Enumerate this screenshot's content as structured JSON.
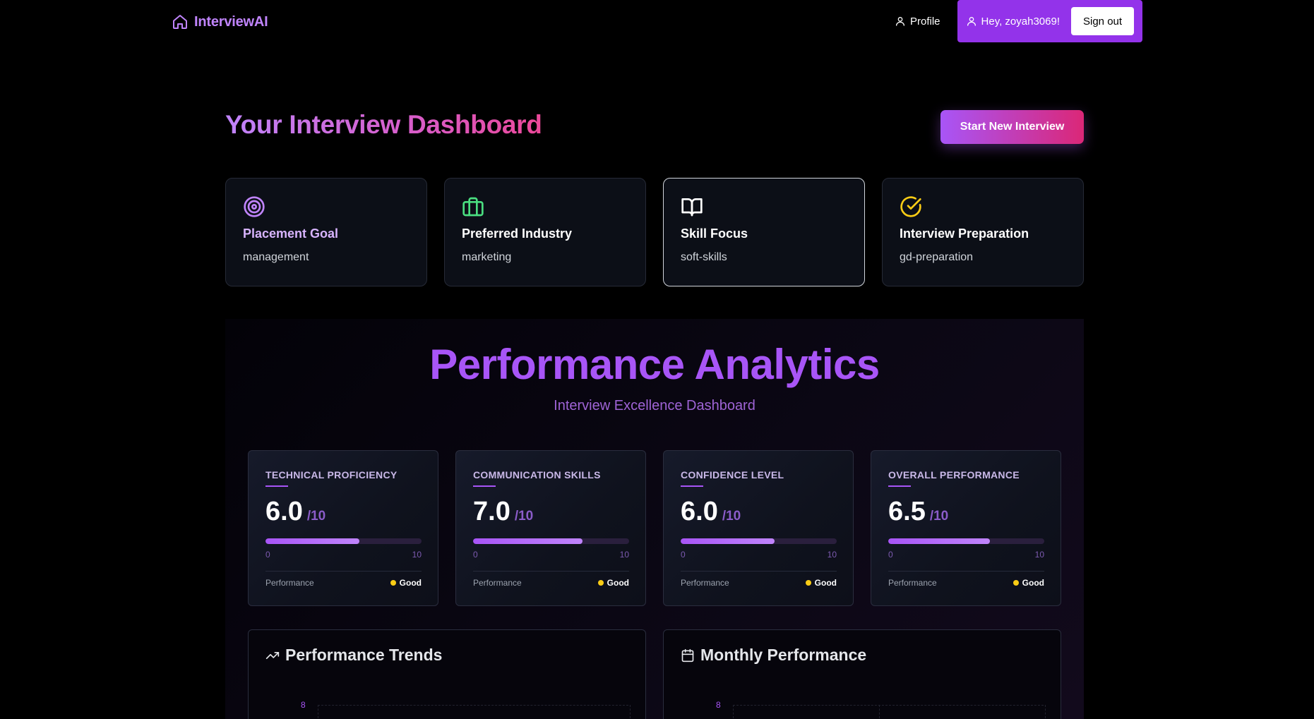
{
  "nav": {
    "brand": "InterviewAI",
    "profile": "Profile",
    "greeting": "Hey, zoyah3069!",
    "sign_out": "Sign out"
  },
  "header": {
    "title": "Your Interview Dashboard",
    "start_button": "Start New Interview"
  },
  "preferences": [
    {
      "label": "Placement Goal",
      "value": "management",
      "icon": "target-icon",
      "color": "#c084fc"
    },
    {
      "label": "Preferred Industry",
      "value": "marketing",
      "icon": "briefcase-icon",
      "color": "#4ade80"
    },
    {
      "label": "Skill Focus",
      "value": "soft-skills",
      "icon": "book-open-icon",
      "color": "#ffffff"
    },
    {
      "label": "Interview Preparation",
      "value": "gd-preparation",
      "icon": "check-circle-icon",
      "color": "#facc15"
    }
  ],
  "analytics": {
    "title": "Performance Analytics",
    "subtitle": "Interview Excellence Dashboard",
    "metrics": [
      {
        "label": "TECHNICAL PROFICIENCY",
        "score": "6.0",
        "max": "/10",
        "progress": 0.6,
        "scale_min": "0",
        "scale_max": "10",
        "footer_label": "Performance",
        "rating": "Good"
      },
      {
        "label": "COMMUNICATION SKILLS",
        "score": "7.0",
        "max": "/10",
        "progress": 0.7,
        "scale_min": "0",
        "scale_max": "10",
        "footer_label": "Performance",
        "rating": "Good"
      },
      {
        "label": "CONFIDENCE LEVEL",
        "score": "6.0",
        "max": "/10",
        "progress": 0.6,
        "scale_min": "0",
        "scale_max": "10",
        "footer_label": "Performance",
        "rating": "Good"
      },
      {
        "label": "OVERALL PERFORMANCE",
        "score": "6.5",
        "max": "/10",
        "progress": 0.65,
        "scale_min": "0",
        "scale_max": "10",
        "footer_label": "Performance",
        "rating": "Good"
      }
    ],
    "charts": [
      {
        "title": "Performance Trends",
        "icon": "trending-up-icon",
        "top_tick": "8"
      },
      {
        "title": "Monthly Performance",
        "icon": "calendar-icon",
        "top_tick": "8"
      }
    ]
  },
  "colors": {
    "accent": "#a855f7",
    "pink": "#ec4899",
    "rating_dot": "#facc15"
  }
}
